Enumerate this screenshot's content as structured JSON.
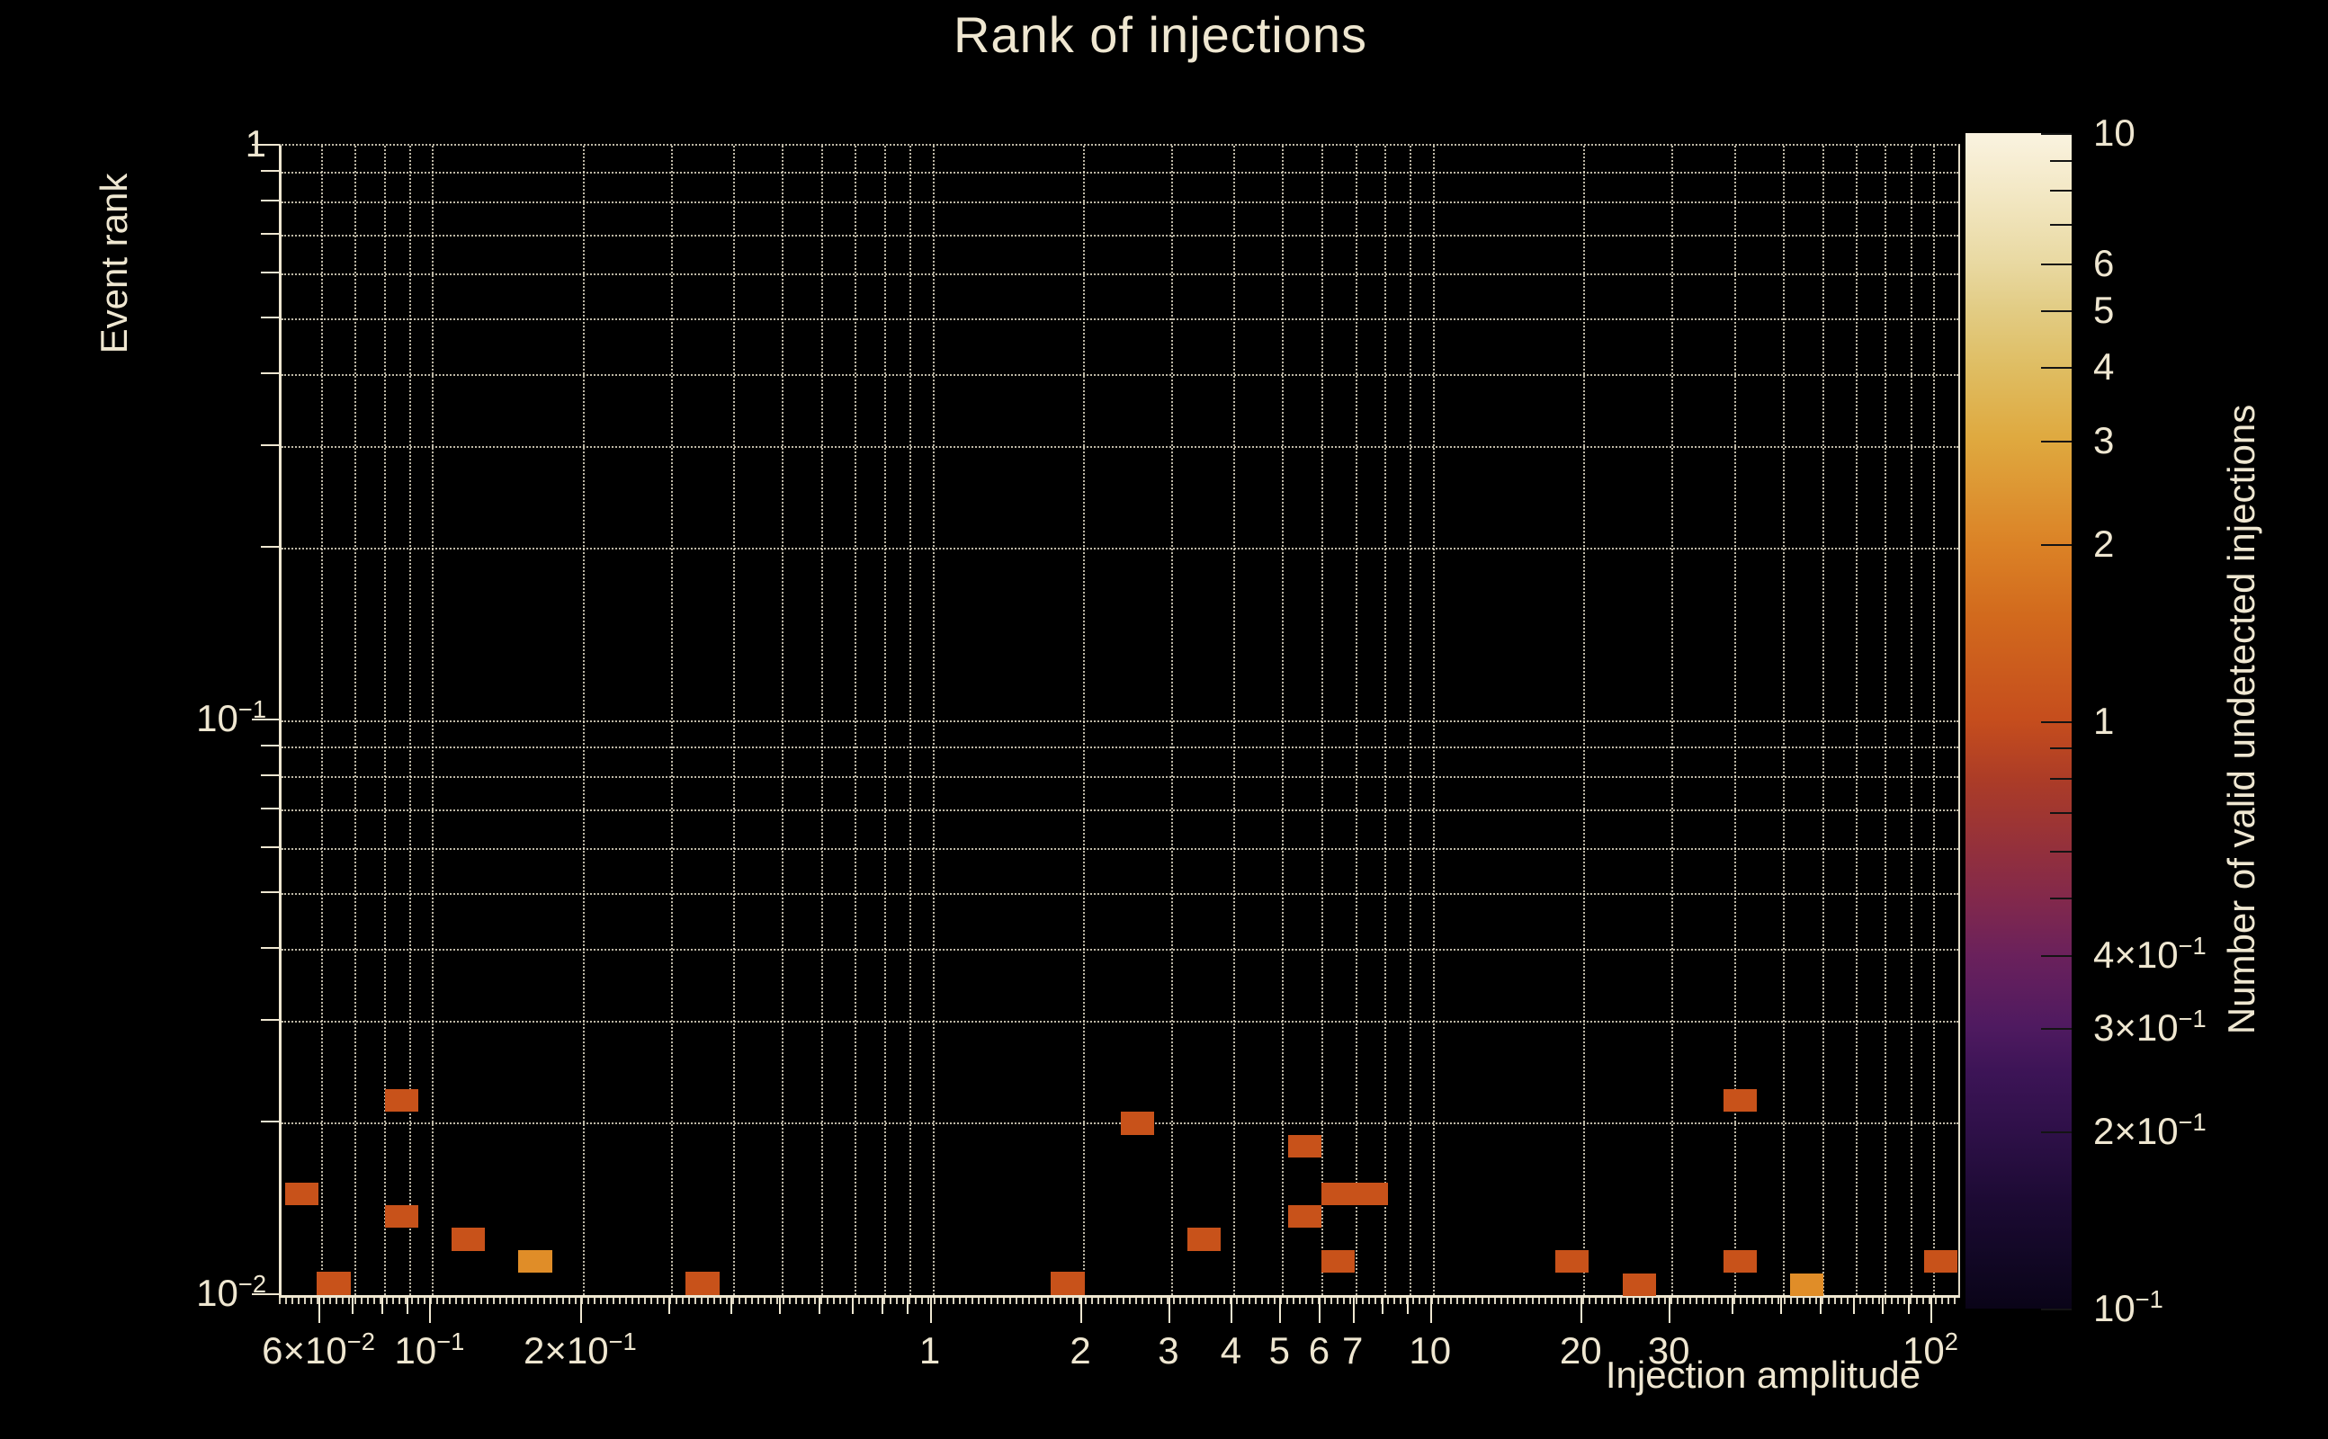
{
  "title": "Rank of injections",
  "colors": {
    "background": "#000000",
    "text": "#EFE7D1",
    "grid": "rgba(238,230,208,0.8)",
    "count_1_bin": "#C8521A",
    "count_2_bin": "#E08D28"
  },
  "chart_data": {
    "type": "heatmap",
    "title": "Rank of injections",
    "xlabel": "Injection amplitude",
    "ylabel": "Event rank",
    "colorbar_label": "Number of valid undetected injections",
    "x_scale": "log",
    "y_scale": "log",
    "color_scale": "log",
    "xlim": [
      0.05,
      112.3
    ],
    "ylim": [
      0.01,
      1
    ],
    "clim": [
      0.1,
      10
    ],
    "grid": true,
    "x_ticks": [
      {
        "v": 0.06,
        "b": "6×10",
        "e": "−2"
      },
      {
        "v": 0.1,
        "b": "10",
        "e": "−1"
      },
      {
        "v": 0.2,
        "b": "2×10",
        "e": "−1"
      },
      {
        "v": 1,
        "b": "1"
      },
      {
        "v": 2,
        "b": "2"
      },
      {
        "v": 3,
        "b": "3"
      },
      {
        "v": 4,
        "b": "4"
      },
      {
        "v": 5,
        "b": "5"
      },
      {
        "v": 6,
        "b": "6"
      },
      {
        "v": 7,
        "b": "7"
      },
      {
        "v": 10,
        "b": "10"
      },
      {
        "v": 20,
        "b": "20"
      },
      {
        "v": 30,
        "b": "30"
      },
      {
        "v": 100,
        "b": "10",
        "e": "2"
      }
    ],
    "y_ticks": [
      {
        "v": 1,
        "b": "1"
      },
      {
        "v": 0.1,
        "b": "10",
        "e": "−1"
      },
      {
        "v": 0.01,
        "b": "10",
        "e": "−2"
      }
    ],
    "colorbar_ticks": [
      {
        "v": 10,
        "b": "10"
      },
      {
        "v": 6,
        "b": "6"
      },
      {
        "v": 5,
        "b": "5"
      },
      {
        "v": 4,
        "b": "4"
      },
      {
        "v": 3,
        "b": "3"
      },
      {
        "v": 2,
        "b": "2"
      },
      {
        "v": 1,
        "b": "1"
      },
      {
        "v": 0.4,
        "b": "4×10",
        "e": "−1"
      },
      {
        "v": 0.3,
        "b": "3×10",
        "e": "−1"
      },
      {
        "v": 0.2,
        "b": "2×10",
        "e": "−1"
      },
      {
        "v": 0.1,
        "b": "10",
        "e": "−1"
      }
    ],
    "colorbar_minor_ticks": [
      9,
      8,
      7,
      0.9,
      0.8,
      0.7,
      0.6,
      0.5
    ],
    "count_colors": {
      "1": "#C8521A",
      "2": "#E08D28"
    },
    "colorbar_gradient": [
      {
        "p": 0,
        "c": "#FAF3E0"
      },
      {
        "p": 5,
        "c": "#F3E8C5"
      },
      {
        "p": 11,
        "c": "#E9D9A2"
      },
      {
        "p": 15,
        "c": "#E2CC84"
      },
      {
        "p": 20,
        "c": "#DFBD62"
      },
      {
        "p": 26,
        "c": "#DFA93F"
      },
      {
        "p": 35,
        "c": "#DB8226"
      },
      {
        "p": 41,
        "c": "#D26A1D"
      },
      {
        "p": 50,
        "c": "#C54D1D"
      },
      {
        "p": 55,
        "c": "#AC3C27"
      },
      {
        "p": 61,
        "c": "#93303C"
      },
      {
        "p": 65,
        "c": "#83294B"
      },
      {
        "p": 70,
        "c": "#6A215C"
      },
      {
        "p": 76,
        "c": "#4F1A60"
      },
      {
        "p": 80,
        "c": "#3C1456"
      },
      {
        "p": 85,
        "c": "#2E1048"
      },
      {
        "p": 91,
        "c": "#1C0A33"
      },
      {
        "p": 96,
        "c": "#110724"
      },
      {
        "p": 100,
        "c": "#0A0418"
      }
    ],
    "points": [
      {
        "x": 0.0548,
        "y": 0.015,
        "count": 1
      },
      {
        "x": 0.0636,
        "y": 0.01047,
        "count": 1
      },
      {
        "x": 0.0869,
        "y": 0.0218,
        "count": 1
      },
      {
        "x": 0.0868,
        "y": 0.0137,
        "count": 1
      },
      {
        "x": 0.118,
        "y": 0.0125,
        "count": 1
      },
      {
        "x": 0.1607,
        "y": 0.01145,
        "count": 2
      },
      {
        "x": 0.347,
        "y": 0.01047,
        "count": 1
      },
      {
        "x": 1.863,
        "y": 0.01047,
        "count": 1
      },
      {
        "x": 2.57,
        "y": 0.0199,
        "count": 1
      },
      {
        "x": 3.49,
        "y": 0.0125,
        "count": 1
      },
      {
        "x": 5.55,
        "y": 0.01816,
        "count": 1
      },
      {
        "x": 6.98,
        "y": 0.015,
        "count": 1,
        "w": 2
      },
      {
        "x": 5.55,
        "y": 0.0137,
        "count": 1
      },
      {
        "x": 6.47,
        "y": 0.01145,
        "count": 1
      },
      {
        "x": 19.0,
        "y": 0.01145,
        "count": 1
      },
      {
        "x": 25.9,
        "y": 0.01043,
        "count": 1
      },
      {
        "x": 41.1,
        "y": 0.0218,
        "count": 1
      },
      {
        "x": 41.1,
        "y": 0.01145,
        "count": 1
      },
      {
        "x": 55.9,
        "y": 0.01043,
        "count": 2
      },
      {
        "x": 103.6,
        "y": 0.01145,
        "count": 1
      }
    ],
    "bin_half_width_decades_x": 0.0335,
    "bin_half_width_decades_y": 0.02
  }
}
